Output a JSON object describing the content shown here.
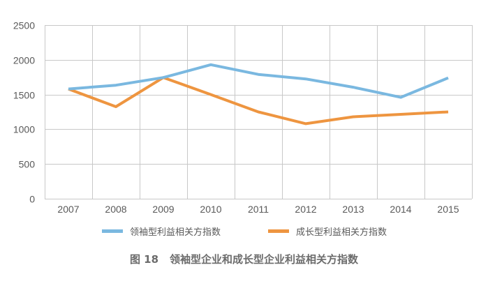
{
  "chart_data": {
    "type": "line",
    "title": "",
    "xlabel": "",
    "ylabel": "",
    "categories": [
      "2007",
      "2008",
      "2009",
      "2010",
      "2011",
      "2012",
      "2013",
      "2014",
      "2015"
    ],
    "ylim": [
      0,
      2500
    ],
    "yticks": [
      0,
      500,
      1000,
      1500,
      2000,
      2500
    ],
    "grid": true,
    "legend_position": "bottom",
    "series": [
      {
        "name": "领袖型利益相关方指数",
        "color": "#7ab8e0",
        "values": [
          1580,
          1635,
          1745,
          1930,
          1790,
          1725,
          1605,
          1460,
          1740
        ]
      },
      {
        "name": "成长型利益相关方指数",
        "color": "#ee9540",
        "values": [
          1580,
          1325,
          1745,
          1500,
          1250,
          1080,
          1180,
          1215,
          1250
        ]
      }
    ]
  },
  "caption": {
    "figure_number": "图 18",
    "title": "领袖型企业和成长型企业利益相关方指数"
  },
  "colors": {
    "grid": "#c8c8c8",
    "axis_text": "#595959",
    "caption_text": "#6b6b6b"
  }
}
